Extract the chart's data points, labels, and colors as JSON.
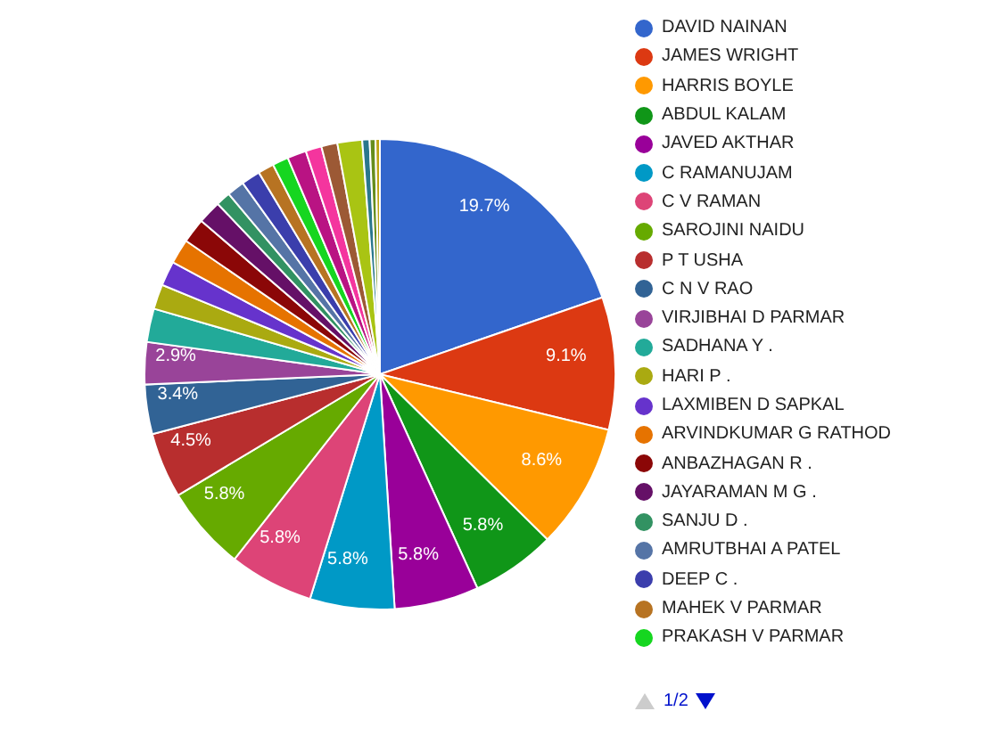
{
  "chart_data": {
    "type": "pie",
    "categories": [
      "DAVID NAINAN",
      "JAMES WRIGHT",
      "HARRIS BOYLE",
      "ABDUL KALAM",
      "JAVED AKTHAR",
      "C RAMANUJAM",
      "C V RAMAN",
      "SAROJINI NAIDU",
      "P T USHA",
      "C N V RAO",
      "VIRJIBHAI D PARMAR",
      "SADHANA Y .",
      "HARI P .",
      "LAXMIBEN D SAPKAL",
      "ARVINDKUMAR G RATHOD",
      "ANBAZHAGAN R .",
      "JAYARAMAN M G .",
      "SANJU D .",
      "AMRUTBHAI A PATEL",
      "DEEP C .",
      "MAHEK V PARMAR",
      "PRAKASH V PARMAR",
      null,
      null,
      null,
      null,
      null,
      null,
      null
    ],
    "values": [
      19.7,
      9.1,
      8.6,
      5.8,
      5.8,
      5.8,
      5.8,
      5.8,
      4.5,
      3.4,
      2.9,
      2.3,
      1.7,
      1.7,
      1.7,
      1.7,
      1.6,
      1.0,
      1.2,
      1.3,
      1.1,
      1.1,
      1.3,
      1.1,
      1.1,
      1.7,
      0.5,
      0.4,
      0.3
    ],
    "colors": [
      "#3366cc",
      "#dc3912",
      "#ff9900",
      "#109618",
      "#990099",
      "#0099c6",
      "#dd4477",
      "#66aa00",
      "#b82e2e",
      "#316395",
      "#994499",
      "#22aa99",
      "#aaaa11",
      "#6633cc",
      "#e67300",
      "#8b0707",
      "#651067",
      "#329262",
      "#5574a6",
      "#3b3eac",
      "#b77322",
      "#16d620",
      "#b91383",
      "#f4359e",
      "#9c5935",
      "#a9c413",
      "#2a778d",
      "#668d1c",
      "#bea413"
    ],
    "value_labels": [
      "19.7%",
      "9.1%",
      "8.6%",
      "5.8%",
      "5.8%",
      "5.8%",
      "5.8%",
      "5.8%",
      "4.5%",
      "3.4%",
      "2.9%",
      null,
      null,
      null,
      null,
      null,
      null,
      null,
      null,
      null,
      null,
      null,
      null,
      null,
      null,
      null,
      null,
      null,
      null
    ],
    "legend": "right",
    "annotations": [
      "1/2"
    ]
  }
}
